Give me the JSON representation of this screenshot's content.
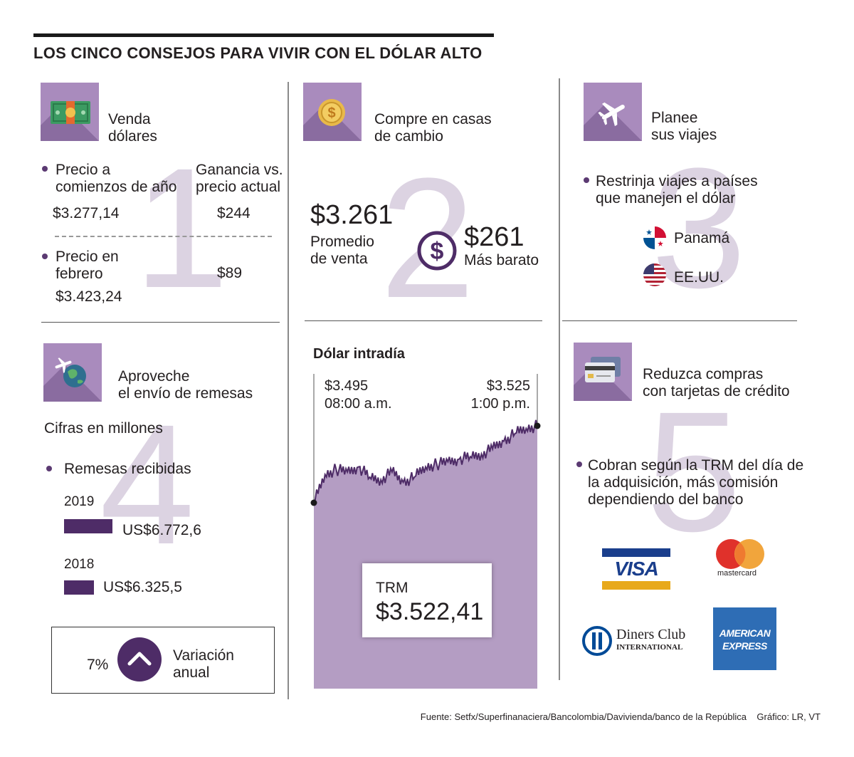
{
  "header": {
    "title": "LOS CINCO CONSEJOS PARA VIVIR CON EL DÓLAR ALTO"
  },
  "tip1": {
    "number": "1",
    "icon": "banknote-icon",
    "title_l1": "Venda",
    "title_l2": "dólares",
    "price_start_l1": "Precio a",
    "price_start_l2": "comienzos de año",
    "gain_l1": "Ganancia vs.",
    "gain_l2": "precio actual",
    "price_start_value": "$3.277,14",
    "gain_start_value": "$244",
    "price_feb_l1": "Precio en",
    "price_feb_l2": "febrero",
    "price_feb_value": "$3.423,24",
    "gain_feb_value": "$89"
  },
  "tip2": {
    "number": "2",
    "icon": "coin-icon",
    "title_l1": "Compre en casas",
    "title_l2": "de cambio",
    "avg_value": "$3.261",
    "avg_l1": "Promedio",
    "avg_l2": "de venta",
    "cheaper_value": "$261",
    "cheaper_label": "Más barato",
    "dollar_icon": "dollar-circle-icon"
  },
  "tip3": {
    "number": "3",
    "icon": "airplane-icon",
    "title_l1": "Planee",
    "title_l2": "sus viajes",
    "bullet_l1": "Restrinja viajes a países",
    "bullet_l2": "que manejen el dólar",
    "countries": [
      "Panamá",
      "EE.UU."
    ]
  },
  "tip4": {
    "number": "4",
    "icon": "globe-plane-icon",
    "title_l1": "Aproveche",
    "title_l2": "el envío de remesas",
    "note": "Cifras en millones",
    "legend": "Remesas recibidas",
    "variation_value": "7%",
    "variation_l1": "Variación",
    "variation_l2": "anual",
    "variation_icon": "chevron-up-icon"
  },
  "tip5": {
    "number": "5",
    "icon": "credit-card-icon",
    "title_l1": "Reduzca compras",
    "title_l2": "con tarjetas de crédito",
    "bullet_l1": "Cobran según la TRM del día de",
    "bullet_l2": "la adquisición, más comisión",
    "bullet_l3": "dependiendo del banco",
    "cards": {
      "visa": "VISA",
      "mastercard": "mastercard",
      "diners_l1": "Diners Club",
      "diners_l2": "INTERNATIONAL",
      "amex_l1": "AMERICAN",
      "amex_l2": "EXPRESS"
    }
  },
  "intraday": {
    "title": "Dólar intradía",
    "open_value": "$3.495",
    "open_time": "08:00 a.m.",
    "close_value": "$3.525",
    "close_time": "1:00 p.m.",
    "trm_label": "TRM",
    "trm_value": "$3.522,41"
  },
  "source": "Fuente: Setfx/Superfinanaciera/Bancolombia/Davivienda/banco de la República    Gráfico: LR, VT",
  "colors": {
    "accent": "#4e2c67",
    "area": "#b49dc3",
    "icon_bg": "#a98bbd",
    "big_number": "#dcd3e2"
  },
  "chart_data": [
    {
      "type": "bar",
      "orientation": "horizontal",
      "title": "Remesas recibidas",
      "categories": [
        "2019",
        "2018"
      ],
      "values": [
        6772.6,
        6325.5
      ],
      "value_labels": [
        "US$6.772,6",
        "US$6.325,5"
      ],
      "xlim": [
        0,
        6772.6
      ]
    },
    {
      "type": "area",
      "title": "Dólar intradía",
      "x": [
        "08:00",
        "08:15",
        "08:30",
        "08:45",
        "09:00",
        "09:15",
        "09:30",
        "09:45",
        "10:00",
        "10:15",
        "10:30",
        "10:45",
        "11:00",
        "11:15",
        "11:30",
        "11:45",
        "12:00",
        "12:15",
        "12:30",
        "12:45",
        "13:00"
      ],
      "values": [
        3495,
        3506,
        3508,
        3507,
        3509,
        3505,
        3504,
        3507,
        3503,
        3505,
        3509,
        3510,
        3511,
        3512,
        3513,
        3514,
        3516,
        3519,
        3522,
        3524,
        3525
      ],
      "ylim": [
        3480,
        3530
      ],
      "annotations": [
        {
          "x": "08:00",
          "y": 3495,
          "label": "$3.495"
        },
        {
          "x": "13:00",
          "y": 3525,
          "label": "$3.525"
        }
      ]
    }
  ]
}
